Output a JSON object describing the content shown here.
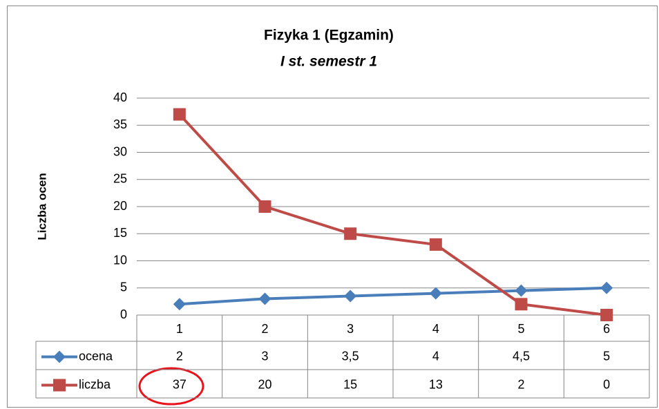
{
  "chart_data": {
    "type": "line",
    "title": "Fizyka 1 (Egzamin)",
    "subtitle": "I st. semestr 1",
    "ylabel": "Liczba ocen",
    "categories": [
      "1",
      "2",
      "3",
      "4",
      "5",
      "6"
    ],
    "series": [
      {
        "name": "ocena",
        "color": "#4a7ebb",
        "marker": "diamond",
        "values": [
          2,
          3,
          3.5,
          4,
          4.5,
          5
        ],
        "value_labels": [
          "2",
          "3",
          "3,5",
          "4",
          "4,5",
          "5"
        ]
      },
      {
        "name": "liczba",
        "color": "#be4b48",
        "marker": "square",
        "values": [
          37,
          20,
          15,
          13,
          2,
          0
        ]
      }
    ],
    "ylim": [
      0,
      40
    ],
    "yticks": [
      0,
      5,
      10,
      15,
      20,
      25,
      30,
      35,
      40
    ],
    "grid": true,
    "data_table": true
  }
}
